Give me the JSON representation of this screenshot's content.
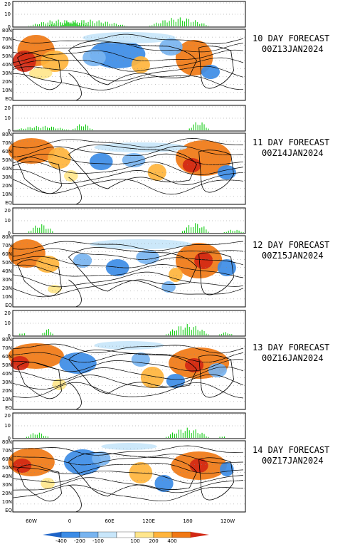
{
  "lat_labels": [
    "80N",
    "70N",
    "60N",
    "50N",
    "40N",
    "30N",
    "20N",
    "10N",
    "EQ"
  ],
  "bar_axis_labels": [
    "20",
    "10",
    "0"
  ],
  "lon_labels": [
    "60W",
    "0",
    "60E",
    "120E",
    "180",
    "120W"
  ],
  "colorbar": {
    "ticks": [
      "-400",
      "-200",
      "-100",
      "100",
      "200",
      "400"
    ],
    "colors": [
      "#1e64c8",
      "#3c8ce6",
      "#78b4f0",
      "#c8e6fa",
      "#ffffff",
      "#ffe68c",
      "#ffb43c",
      "#f07814",
      "#d22814"
    ]
  },
  "panels": [
    {
      "title": "10 DAY FORECAST",
      "date": "00Z13JAN2024",
      "bars": [
        [
          0.06,
          0.35,
          6
        ],
        [
          0.13,
          0.5,
          6
        ],
        [
          0.2,
          0.3,
          4
        ],
        [
          0.58,
          0.85,
          8
        ]
      ],
      "blobs": [
        [
          0.1,
          0.3,
          0.08,
          0.22,
          "#f07814"
        ],
        [
          0.05,
          0.45,
          0.05,
          0.15,
          "#d22814"
        ],
        [
          0.18,
          0.45,
          0.06,
          0.15,
          "#ffb43c"
        ],
        [
          0.45,
          0.35,
          0.12,
          0.2,
          "#3c8ce6"
        ],
        [
          0.35,
          0.4,
          0.05,
          0.12,
          "#78b4f0"
        ],
        [
          0.55,
          0.5,
          0.04,
          0.12,
          "#ffb43c"
        ],
        [
          0.78,
          0.4,
          0.08,
          0.25,
          "#f07814"
        ],
        [
          0.85,
          0.6,
          0.04,
          0.1,
          "#3c8ce6"
        ],
        [
          0.5,
          0.12,
          0.2,
          0.08,
          "#c8e6fa"
        ],
        [
          0.68,
          0.25,
          0.05,
          0.12,
          "#78b4f0"
        ],
        [
          0.12,
          0.62,
          0.05,
          0.08,
          "#ffe68c"
        ]
      ]
    },
    {
      "title": "11 DAY FORECAST",
      "date": "00Z14JAN2024",
      "bars": [
        [
          0.0,
          0.25,
          4
        ],
        [
          0.25,
          0.35,
          6
        ],
        [
          0.75,
          0.85,
          8
        ]
      ],
      "blobs": [
        [
          0.08,
          0.25,
          0.1,
          0.18,
          "#f07814"
        ],
        [
          0.2,
          0.35,
          0.05,
          0.15,
          "#ffb43c"
        ],
        [
          0.38,
          0.4,
          0.05,
          0.12,
          "#3c8ce6"
        ],
        [
          0.52,
          0.38,
          0.05,
          0.1,
          "#78b4f0"
        ],
        [
          0.62,
          0.55,
          0.04,
          0.12,
          "#ffb43c"
        ],
        [
          0.82,
          0.35,
          0.12,
          0.25,
          "#f07814"
        ],
        [
          0.77,
          0.45,
          0.04,
          0.1,
          "#d22814"
        ],
        [
          0.92,
          0.55,
          0.04,
          0.1,
          "#3c8ce6"
        ],
        [
          0.55,
          0.2,
          0.2,
          0.07,
          "#c8e6fa"
        ],
        [
          0.25,
          0.6,
          0.03,
          0.08,
          "#ffe68c"
        ]
      ]
    },
    {
      "title": "12 DAY FORECAST",
      "date": "00Z15JAN2024",
      "bars": [
        [
          0.06,
          0.18,
          8
        ],
        [
          0.72,
          0.85,
          9
        ],
        [
          0.9,
          1.0,
          3
        ]
      ],
      "blobs": [
        [
          0.06,
          0.25,
          0.08,
          0.2,
          "#f07814"
        ],
        [
          0.15,
          0.4,
          0.05,
          0.12,
          "#ffb43c"
        ],
        [
          0.3,
          0.35,
          0.04,
          0.1,
          "#78b4f0"
        ],
        [
          0.45,
          0.45,
          0.05,
          0.12,
          "#3c8ce6"
        ],
        [
          0.58,
          0.3,
          0.05,
          0.1,
          "#78b4f0"
        ],
        [
          0.8,
          0.35,
          0.1,
          0.25,
          "#f07814"
        ],
        [
          0.82,
          0.35,
          0.04,
          0.12,
          "#d22814"
        ],
        [
          0.7,
          0.55,
          0.03,
          0.1,
          "#ffb43c"
        ],
        [
          0.92,
          0.45,
          0.04,
          0.12,
          "#3c8ce6"
        ],
        [
          0.55,
          0.12,
          0.22,
          0.07,
          "#c8e6fa"
        ],
        [
          0.18,
          0.75,
          0.03,
          0.06,
          "#ffe68c"
        ],
        [
          0.67,
          0.72,
          0.03,
          0.08,
          "#78b4f0"
        ]
      ]
    },
    {
      "title": "13 DAY FORECAST",
      "date": "00Z16JAN2024",
      "bars": [
        [
          0.02,
          0.06,
          3
        ],
        [
          0.12,
          0.18,
          6
        ],
        [
          0.65,
          0.85,
          10
        ],
        [
          0.88,
          0.95,
          3
        ]
      ],
      "blobs": [
        [
          0.1,
          0.25,
          0.12,
          0.18,
          "#f07814"
        ],
        [
          0.03,
          0.35,
          0.04,
          0.1,
          "#d22814"
        ],
        [
          0.28,
          0.35,
          0.08,
          0.15,
          "#3c8ce6"
        ],
        [
          0.55,
          0.3,
          0.04,
          0.1,
          "#78b4f0"
        ],
        [
          0.6,
          0.55,
          0.05,
          0.15,
          "#ffb43c"
        ],
        [
          0.8,
          0.35,
          0.13,
          0.22,
          "#f07814"
        ],
        [
          0.78,
          0.38,
          0.04,
          0.1,
          "#d22814"
        ],
        [
          0.7,
          0.6,
          0.04,
          0.1,
          "#3c8ce6"
        ],
        [
          0.88,
          0.45,
          0.04,
          0.1,
          "#78b4f0"
        ],
        [
          0.5,
          0.1,
          0.15,
          0.06,
          "#c8e6fa"
        ],
        [
          0.2,
          0.65,
          0.03,
          0.08,
          "#ffe68c"
        ]
      ]
    },
    {
      "title": "14 DAY FORECAST",
      "date": "00Z17JAN2024",
      "bars": [
        [
          0.05,
          0.16,
          5
        ],
        [
          0.65,
          0.85,
          9
        ],
        [
          0.88,
          0.92,
          2
        ]
      ],
      "blobs": [
        [
          0.08,
          0.3,
          0.1,
          0.2,
          "#f07814"
        ],
        [
          0.04,
          0.35,
          0.04,
          0.1,
          "#d22814"
        ],
        [
          0.3,
          0.3,
          0.08,
          0.18,
          "#3c8ce6"
        ],
        [
          0.38,
          0.25,
          0.04,
          0.1,
          "#78b4f0"
        ],
        [
          0.55,
          0.45,
          0.05,
          0.15,
          "#ffb43c"
        ],
        [
          0.65,
          0.6,
          0.04,
          0.12,
          "#3c8ce6"
        ],
        [
          0.8,
          0.35,
          0.12,
          0.2,
          "#f07814"
        ],
        [
          0.8,
          0.35,
          0.04,
          0.1,
          "#d22814"
        ],
        [
          0.92,
          0.4,
          0.03,
          0.1,
          "#3c8ce6"
        ],
        [
          0.5,
          0.08,
          0.12,
          0.05,
          "#c8e6fa"
        ],
        [
          0.15,
          0.6,
          0.03,
          0.08,
          "#ffe68c"
        ]
      ]
    }
  ]
}
